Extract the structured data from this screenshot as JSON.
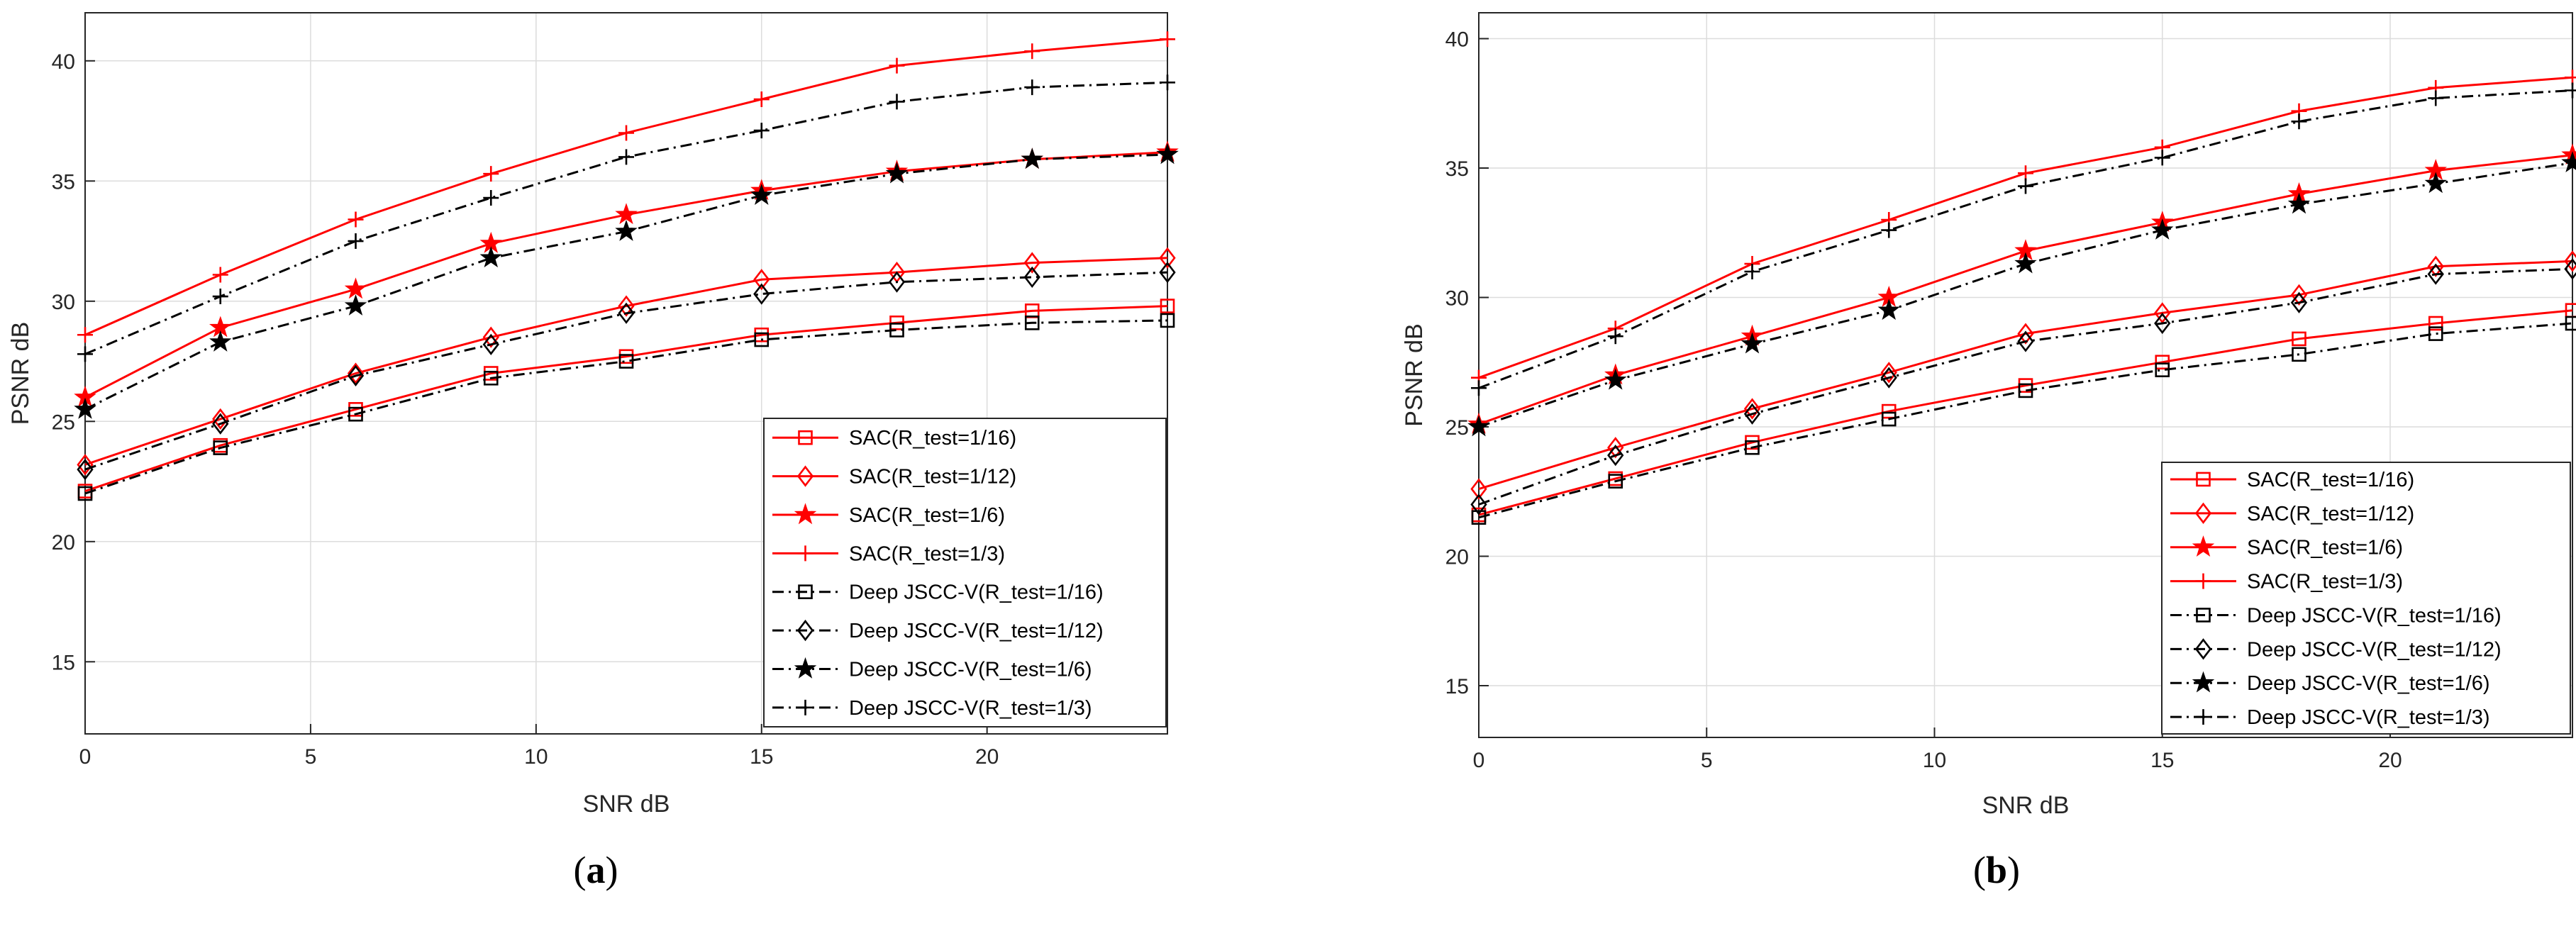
{
  "colors": {
    "sac": "#ff0000",
    "deep": "#000000",
    "grid": "#dcdcdc",
    "axis": "#262626"
  },
  "chart_data": [
    {
      "type": "line",
      "panel_label_open": "(",
      "panel_label_letter": "a",
      "panel_label_close": ")",
      "xlabel": "SNR dB",
      "ylabel": "PSNR dB",
      "xlim": [
        0,
        24
      ],
      "ylim": [
        12,
        42
      ],
      "xticks": [
        0,
        5,
        10,
        15,
        20
      ],
      "yticks": [
        15,
        20,
        25,
        30,
        35,
        40
      ],
      "grid": true,
      "legend_position": "bottom-right",
      "x": [
        0,
        3,
        6,
        9,
        12,
        15,
        18,
        21,
        24
      ],
      "series": [
        {
          "name": "SAC(R_test=1/16)",
          "group": "sac",
          "marker": "square",
          "values": [
            22.1,
            24.0,
            25.5,
            27.0,
            27.7,
            28.6,
            29.1,
            29.6,
            29.8
          ]
        },
        {
          "name": "SAC(R_test=1/12)",
          "group": "sac",
          "marker": "diamond",
          "values": [
            23.2,
            25.1,
            27.0,
            28.5,
            29.8,
            30.9,
            31.2,
            31.6,
            31.8
          ]
        },
        {
          "name": "SAC(R_test=1/6)",
          "group": "sac",
          "marker": "star",
          "values": [
            26.0,
            28.9,
            30.5,
            32.4,
            33.6,
            34.6,
            35.4,
            35.9,
            36.2
          ]
        },
        {
          "name": "SAC(R_test=1/3)",
          "group": "sac",
          "marker": "plus",
          "values": [
            28.6,
            31.1,
            33.4,
            35.3,
            37.0,
            38.4,
            39.8,
            40.4,
            40.9
          ]
        },
        {
          "name": "Deep JSCC-V(R_test=1/16)",
          "group": "deep",
          "marker": "square",
          "values": [
            22.0,
            23.9,
            25.3,
            26.8,
            27.5,
            28.4,
            28.8,
            29.1,
            29.2
          ]
        },
        {
          "name": "Deep JSCC-V(R_test=1/12)",
          "group": "deep",
          "marker": "diamond",
          "values": [
            23.0,
            24.9,
            26.9,
            28.2,
            29.5,
            30.3,
            30.8,
            31.0,
            31.2
          ]
        },
        {
          "name": "Deep JSCC-V(R_test=1/6)",
          "group": "deep",
          "marker": "star",
          "values": [
            25.5,
            28.3,
            29.8,
            31.8,
            32.9,
            34.4,
            35.3,
            35.9,
            36.1
          ]
        },
        {
          "name": "Deep JSCC-V(R_test=1/3)",
          "group": "deep",
          "marker": "plus",
          "values": [
            27.8,
            30.2,
            32.5,
            34.3,
            36.0,
            37.1,
            38.3,
            38.9,
            39.1
          ]
        }
      ]
    },
    {
      "type": "line",
      "panel_label_open": "(",
      "panel_label_letter": "b",
      "panel_label_close": ")",
      "xlabel": "SNR dB",
      "ylabel": "PSNR dB",
      "xlim": [
        0,
        24
      ],
      "ylim": [
        13,
        41
      ],
      "xticks": [
        0,
        5,
        10,
        15,
        20
      ],
      "yticks": [
        15,
        20,
        25,
        30,
        35,
        40
      ],
      "grid": true,
      "legend_position": "bottom-right",
      "x": [
        0,
        3,
        6,
        9,
        12,
        15,
        18,
        21,
        24
      ],
      "series": [
        {
          "name": "SAC(R_test=1/16)",
          "group": "sac",
          "marker": "square",
          "values": [
            21.6,
            23.0,
            24.4,
            25.6,
            26.6,
            27.5,
            28.4,
            29.0,
            29.5
          ]
        },
        {
          "name": "SAC(R_test=1/12)",
          "group": "sac",
          "marker": "diamond",
          "values": [
            22.6,
            24.2,
            25.7,
            27.1,
            28.6,
            29.4,
            30.1,
            31.2,
            31.4
          ]
        },
        {
          "name": "SAC(R_test=1/6)",
          "group": "sac",
          "marker": "star",
          "values": [
            25.1,
            27.0,
            28.5,
            30.0,
            31.8,
            32.9,
            34.0,
            34.9,
            35.5
          ]
        },
        {
          "name": "SAC(R_test=1/3)",
          "group": "sac",
          "marker": "plus",
          "values": [
            26.9,
            28.8,
            31.3,
            33.0,
            34.8,
            35.8,
            37.2,
            38.1,
            38.5
          ]
        },
        {
          "name": "Deep JSCC-V(R_test=1/16)",
          "group": "deep",
          "marker": "square",
          "values": [
            21.5,
            22.9,
            24.2,
            25.3,
            26.4,
            27.2,
            27.8,
            28.6,
            29.0
          ]
        },
        {
          "name": "Deep JSCC-V(R_test=1/12)",
          "group": "deep",
          "marker": "diamond",
          "values": [
            22.0,
            23.9,
            25.5,
            26.9,
            28.3,
            29.0,
            29.8,
            30.9,
            31.1
          ]
        },
        {
          "name": "Deep JSCC-V(R_test=1/6)",
          "group": "deep",
          "marker": "star",
          "values": [
            25.0,
            26.8,
            28.2,
            29.5,
            31.3,
            32.6,
            33.6,
            34.4,
            35.2
          ]
        },
        {
          "name": "Deep JSCC-V(R_test=1/3)",
          "group": "deep",
          "marker": "plus",
          "values": [
            26.5,
            28.5,
            31.0,
            32.6,
            34.3,
            35.4,
            36.8,
            37.7,
            38.0
          ]
        }
      ]
    }
  ]
}
